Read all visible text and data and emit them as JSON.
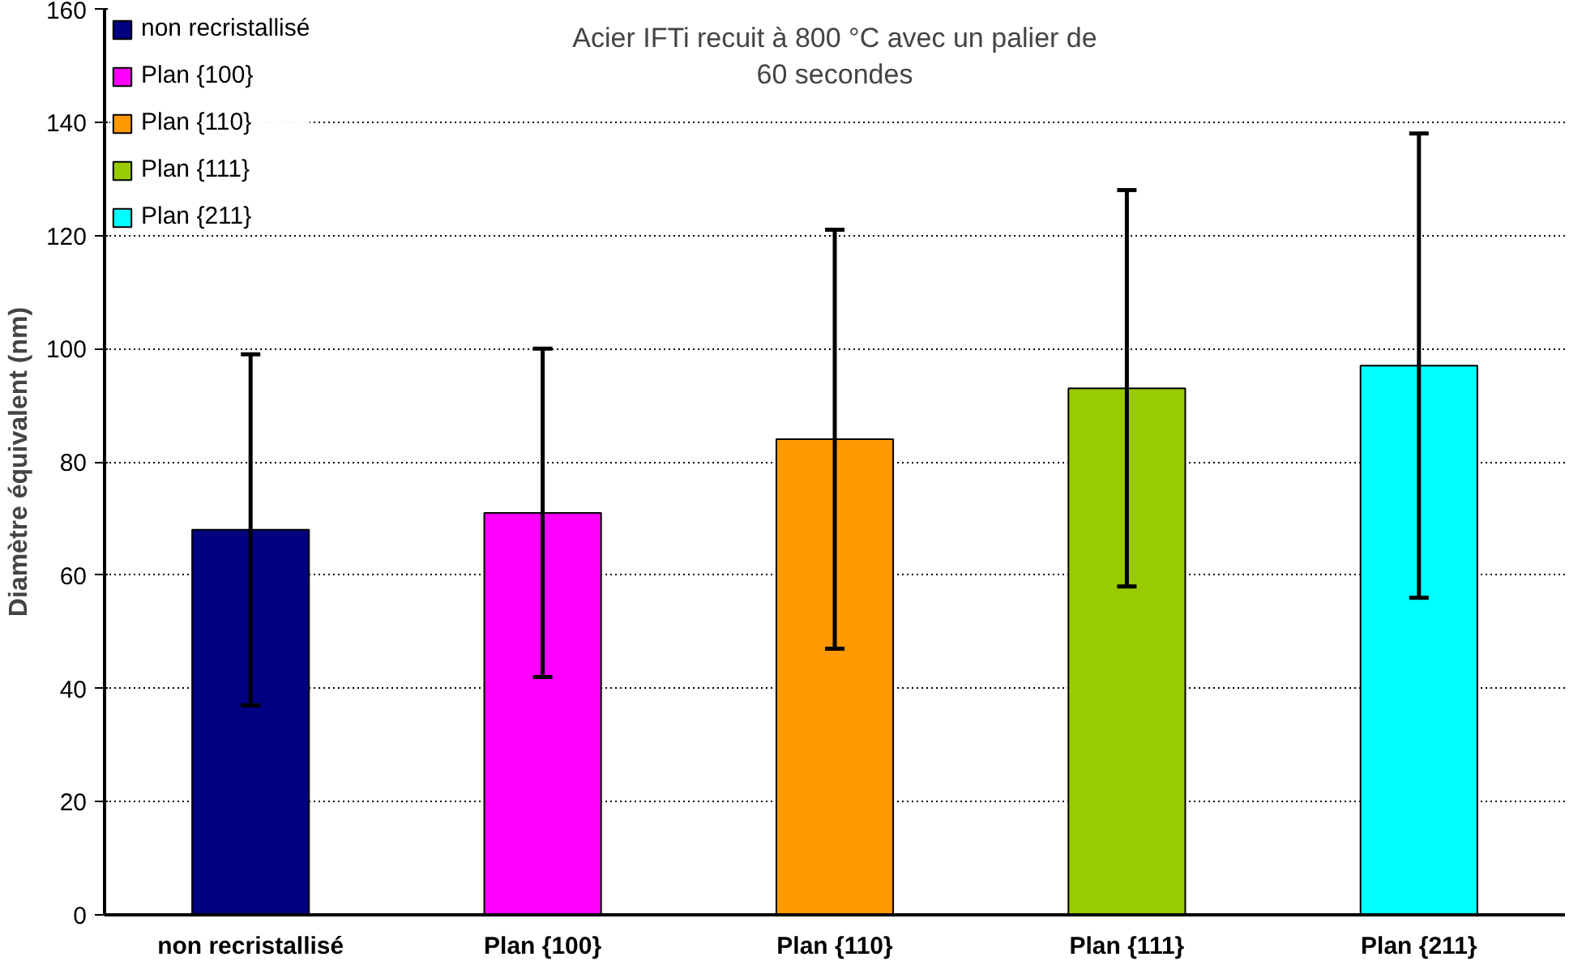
{
  "chart_data": {
    "type": "bar",
    "stacked": true,
    "title": "Acier IFTi recuit à 800 °C avec un palier de\n60 secondes",
    "ylabel": "Diamètre équivalent (nm)",
    "categories": [
      "non recristallisé",
      "Plan {100}",
      "Plan {110}",
      "Plan {111}",
      "Plan {211}"
    ],
    "series": [
      {
        "name": "non recristallisé",
        "color": "#000080",
        "values": [
          68,
          null,
          null,
          null,
          null
        ],
        "errors": [
          [
            37,
            99
          ],
          null,
          null,
          null,
          null
        ]
      },
      {
        "name": "Plan {100}",
        "color": "#ff00ff",
        "values": [
          null,
          71,
          null,
          null,
          null
        ],
        "errors": [
          null,
          [
            42,
            100
          ],
          null,
          null,
          null
        ]
      },
      {
        "name": "Plan {110}",
        "color": "#ff9900",
        "values": [
          null,
          null,
          84,
          null,
          null
        ],
        "errors": [
          null,
          null,
          [
            47,
            121
          ],
          null,
          null
        ]
      },
      {
        "name": "Plan {111}",
        "color": "#99cc00",
        "values": [
          null,
          null,
          null,
          93,
          null
        ],
        "errors": [
          null,
          null,
          null,
          [
            58,
            128
          ],
          null
        ]
      },
      {
        "name": "Plan {211}",
        "color": "#00ffff",
        "values": [
          null,
          null,
          null,
          null,
          97
        ],
        "errors": [
          null,
          null,
          null,
          null,
          [
            56,
            138
          ]
        ]
      }
    ],
    "ylim": [
      0,
      160
    ],
    "yticks": [
      0,
      20,
      40,
      60,
      80,
      100,
      120,
      140,
      160
    ],
    "grid": "y",
    "legend": "top left"
  }
}
